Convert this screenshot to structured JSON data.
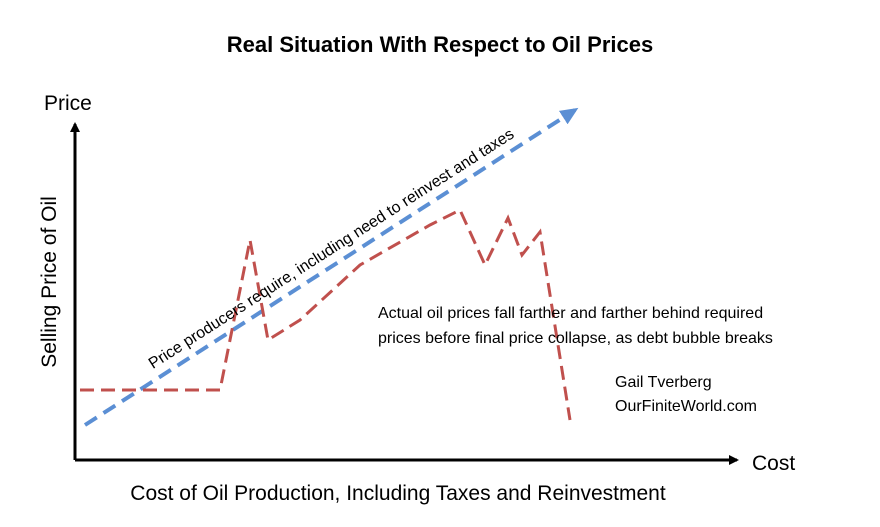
{
  "title": "Real Situation With Respect to Oil Prices",
  "y_axis_end_label": "Price",
  "x_axis_end_label": "Cost",
  "y_axis_title": "Selling Price of Oil",
  "x_axis_title": "Cost of Oil Production, Including Taxes and Reinvestment",
  "required_line_label": "Price producers require, including need to reinvest and taxes",
  "annotation": {
    "lines": [
      "Actual oil prices fall farther and farther behind required",
      "prices before final price collapse, as debt bubble breaks"
    ]
  },
  "credit": {
    "lines": [
      "Gail Tverberg",
      "OurFiniteWorld.com"
    ]
  }
}
